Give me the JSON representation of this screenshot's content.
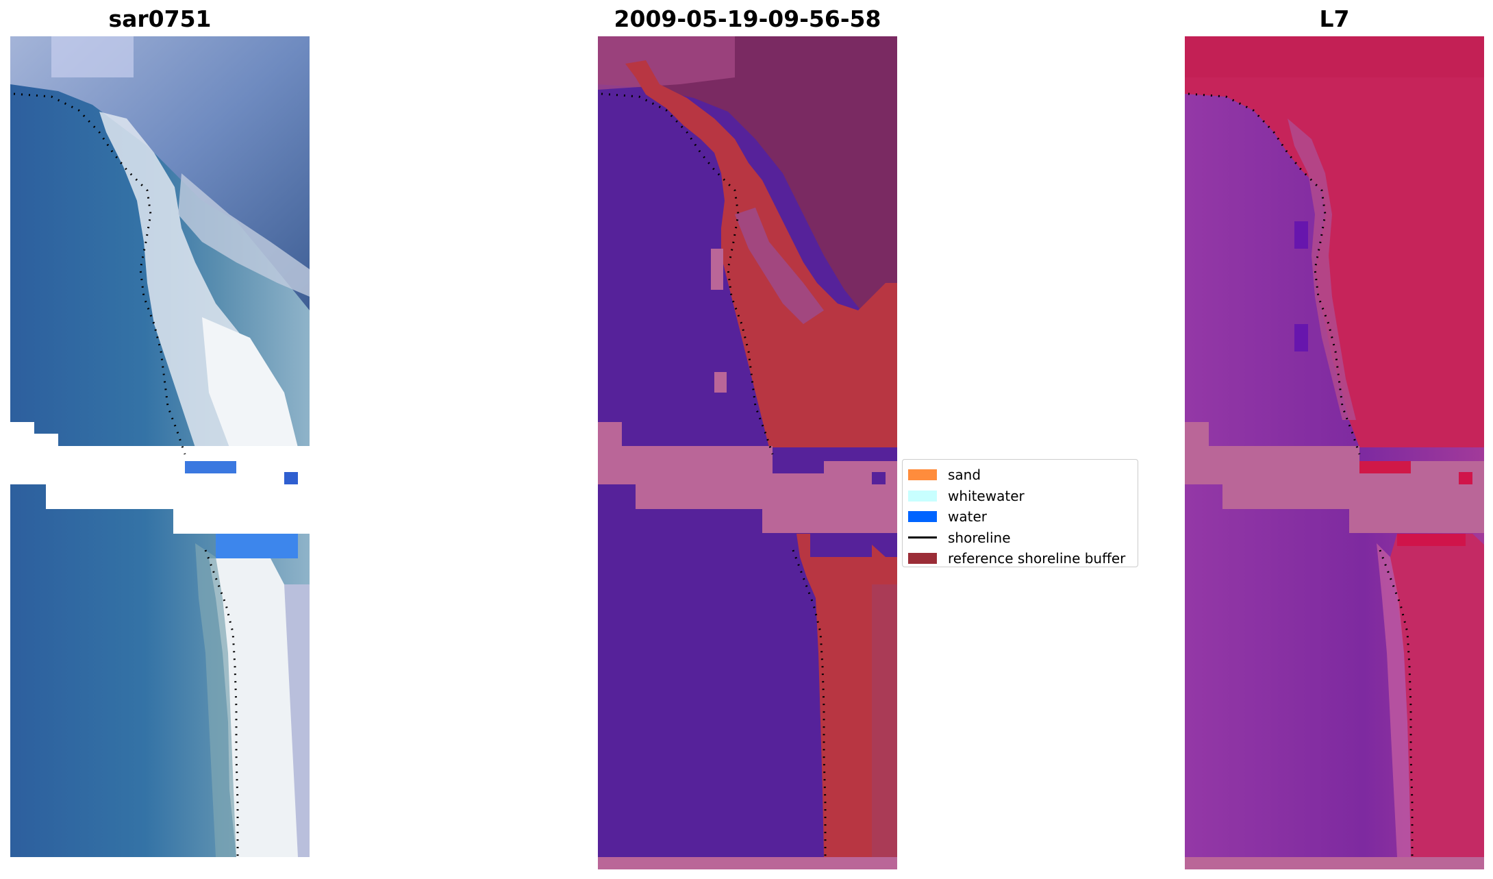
{
  "panels": {
    "rgb": {
      "title": "sar0751"
    },
    "classified": {
      "title": "2009-05-19-09-56-58"
    },
    "mndwi": {
      "title": "L7"
    }
  },
  "legend": {
    "items": [
      {
        "label": "sand",
        "color": "#ff8c3c",
        "kind": "patch"
      },
      {
        "label": "whitewater",
        "color": "#c8ffff",
        "kind": "patch"
      },
      {
        "label": "water",
        "color": "#0064ff",
        "kind": "patch"
      },
      {
        "label": "shoreline",
        "color": "#000000",
        "kind": "line"
      },
      {
        "label": "reference shoreline buffer",
        "color": "#9b2d37",
        "kind": "patch"
      }
    ]
  },
  "colors": {
    "water_purple": "#56229a",
    "buffer_red": "#b83642",
    "nodata_pink": "#ba6698",
    "land_maroon": "#7a2a62",
    "rgb_water": "#2f68a8",
    "rgb_sand": "#e9eef4",
    "mndwi_water": "#8a2ea0",
    "mndwi_land": "#c6245a"
  }
}
